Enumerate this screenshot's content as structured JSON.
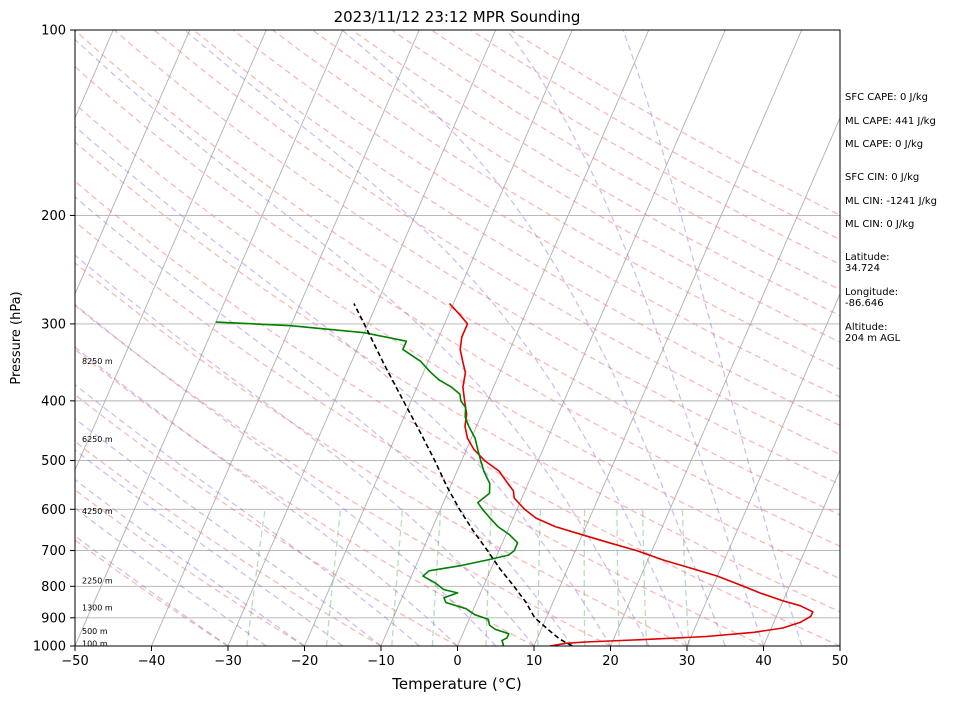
{
  "chart_data": {
    "type": "line",
    "title": "2023/11/12 23:12 MPR Sounding",
    "xlabel": "Temperature (°C)",
    "ylabel": "Pressure (hPa)",
    "xlim": [
      -50,
      50
    ],
    "ylim": [
      1000,
      100
    ],
    "yscale": "log",
    "skew": true,
    "grid": true,
    "x_ticks": [
      -50,
      -40,
      -30,
      -20,
      -10,
      0,
      10,
      20,
      30,
      40,
      50
    ],
    "y_ticks": [
      100,
      200,
      300,
      400,
      500,
      600,
      700,
      800,
      900,
      1000
    ],
    "height_labels": [
      {
        "label": "8250 m",
        "p": 345
      },
      {
        "label": "6250 m",
        "p": 462
      },
      {
        "label": "4250 m",
        "p": 605
      },
      {
        "label": "2250 m",
        "p": 785
      },
      {
        "label": "1300 m",
        "p": 867
      },
      {
        "label": "500 m",
        "p": 948
      },
      {
        "label": "100 m",
        "p": 992
      }
    ],
    "series": [
      {
        "color": "#e00000",
        "points": [
          [
            1000,
            12.1
          ],
          [
            990,
            14.0
          ],
          [
            985,
            16.5
          ],
          [
            975,
            25.0
          ],
          [
            965,
            32.0
          ],
          [
            950,
            38.0
          ],
          [
            935,
            41.5
          ],
          [
            915,
            43.5
          ],
          [
            895,
            44.5
          ],
          [
            880,
            44.5
          ],
          [
            860,
            42.5
          ],
          [
            845,
            40.0
          ],
          [
            820,
            36.5
          ],
          [
            800,
            34.0
          ],
          [
            770,
            30.0
          ],
          [
            750,
            26.5
          ],
          [
            725,
            22.0
          ],
          [
            700,
            18.0
          ],
          [
            680,
            14.0
          ],
          [
            660,
            10.0
          ],
          [
            640,
            6.0
          ],
          [
            620,
            3.0
          ],
          [
            600,
            1.0
          ],
          [
            575,
            -1.0
          ],
          [
            560,
            -1.5
          ],
          [
            540,
            -3.0
          ],
          [
            520,
            -4.5
          ],
          [
            500,
            -7.0
          ],
          [
            480,
            -9.0
          ],
          [
            460,
            -10.5
          ],
          [
            440,
            -11.5
          ],
          [
            420,
            -12.0
          ],
          [
            400,
            -13.0
          ],
          [
            380,
            -14.0
          ],
          [
            360,
            -14.5
          ],
          [
            345,
            -15.5
          ],
          [
            330,
            -16.5
          ],
          [
            315,
            -17.0
          ],
          [
            300,
            -17.0
          ],
          [
            290,
            -18.5
          ],
          [
            278,
            -20.5
          ]
        ]
      },
      {
        "color": "#008000",
        "points": [
          [
            1000,
            6.0
          ],
          [
            990,
            5.8
          ],
          [
            980,
            5.5
          ],
          [
            970,
            6.0
          ],
          [
            955,
            6.0
          ],
          [
            940,
            4.0
          ],
          [
            925,
            3.0
          ],
          [
            905,
            2.5
          ],
          [
            890,
            0.5
          ],
          [
            870,
            -1.0
          ],
          [
            850,
            -4.0
          ],
          [
            835,
            -4.5
          ],
          [
            820,
            -3.0
          ],
          [
            810,
            -5.0
          ],
          [
            790,
            -6.5
          ],
          [
            770,
            -8.5
          ],
          [
            755,
            -8.0
          ],
          [
            740,
            -4.0
          ],
          [
            725,
            -1.0
          ],
          [
            712,
            1.5
          ],
          [
            700,
            2.0
          ],
          [
            680,
            2.0
          ],
          [
            660,
            0.5
          ],
          [
            640,
            -1.5
          ],
          [
            620,
            -3.0
          ],
          [
            600,
            -4.5
          ],
          [
            585,
            -5.5
          ],
          [
            565,
            -4.5
          ],
          [
            545,
            -5.0
          ],
          [
            520,
            -6.5
          ],
          [
            500,
            -7.5
          ],
          [
            480,
            -8.5
          ],
          [
            460,
            -9.5
          ],
          [
            440,
            -11.0
          ],
          [
            425,
            -12.0
          ],
          [
            410,
            -12.5
          ],
          [
            400,
            -13.5
          ],
          [
            390,
            -14.0
          ],
          [
            380,
            -15.5
          ],
          [
            370,
            -17.5
          ],
          [
            360,
            -19.0
          ],
          [
            345,
            -21.0
          ],
          [
            330,
            -24.0
          ],
          [
            320,
            -24.0
          ],
          [
            310,
            -30.0
          ],
          [
            302,
            -40.0
          ],
          [
            298,
            -50.0
          ]
        ]
      },
      {
        "color": "#000000",
        "dashed": true,
        "points": [
          [
            1000,
            15.0
          ],
          [
            975,
            13.0
          ],
          [
            950,
            11.5
          ],
          [
            925,
            10.0
          ],
          [
            900,
            8.5
          ],
          [
            875,
            7.5
          ],
          [
            850,
            6.5
          ],
          [
            800,
            4.0
          ],
          [
            750,
            1.2
          ],
          [
            700,
            -1.5
          ],
          [
            650,
            -4.5
          ],
          [
            600,
            -7.5
          ],
          [
            550,
            -10.5
          ],
          [
            500,
            -13.5
          ],
          [
            450,
            -17.0
          ],
          [
            400,
            -21.0
          ],
          [
            350,
            -25.5
          ],
          [
            300,
            -30.5
          ],
          [
            278,
            -33.0
          ]
        ]
      }
    ],
    "annotations": {
      "sfc_cape": "SFC CAPE: 0 J/kg",
      "ml_cape_1": "ML CAPE: 441 J/kg",
      "ml_cape_2": "ML CAPE: 0 J/kg",
      "sfc_cin": "SFC CIN: 0 J/kg",
      "ml_cin_1": "ML CIN: -1241 J/kg",
      "ml_cin_2": "ML CIN: 0 J/kg",
      "latitude_label": "Latitude:",
      "latitude_value": "34.724",
      "longitude_label": "Longitude:",
      "longitude_value": "-86.646",
      "altitude_label": "Altitude:",
      "altitude_value": "204 m AGL"
    },
    "colors": {
      "isotherm": "#b0b0b0",
      "dry_adiabat": "#f08080",
      "moist_adiabat": "#9370db",
      "mixing_ratio": "#32a032",
      "gridline": "#b0b0b0"
    }
  }
}
